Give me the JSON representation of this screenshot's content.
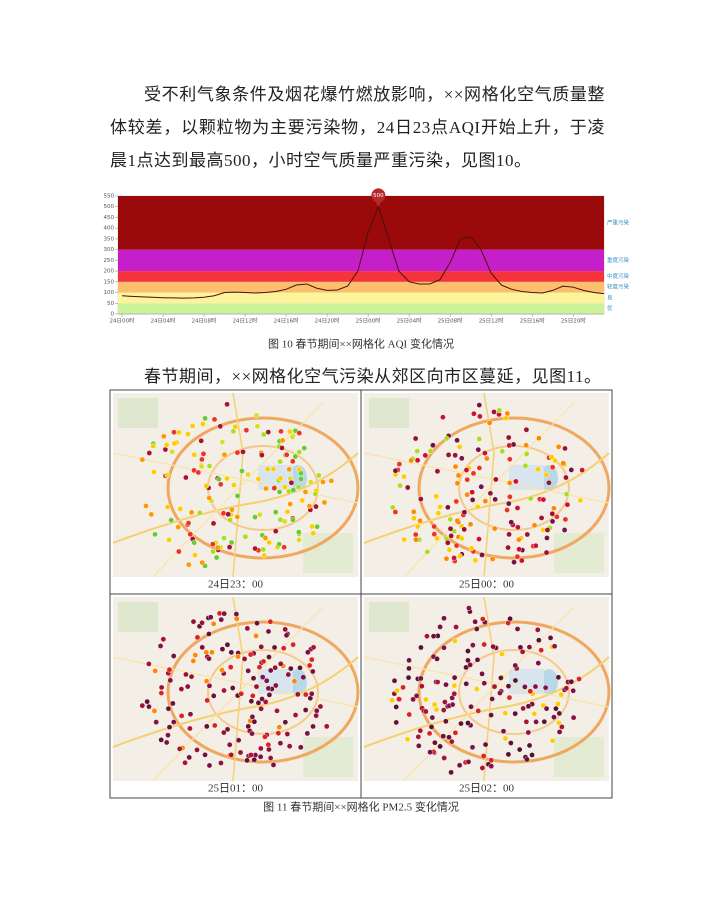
{
  "paragraphs": [
    "受不利气象条件及烟花爆竹燃放影响，××网格化空气质量整体较差，以颗粒物为主要污染物，24日23点AQI开始上升，于凌晨1点达到最高500，小时空气质量严重污染，见图10。",
    "春节期间，××网格化空气污染从郊区向市区蔓延，见图11。"
  ],
  "chart_data": {
    "type": "line",
    "caption": "图 10 春节期间××网格化 AQI 变化情况",
    "categories": [
      "24日00时",
      null,
      null,
      null,
      "24日04时",
      null,
      null,
      null,
      "24日08时",
      null,
      null,
      null,
      "24日12时",
      null,
      null,
      null,
      "24日16时",
      null,
      null,
      null,
      "24日20时",
      null,
      null,
      null,
      "25日00时",
      null,
      null,
      null,
      "25日04时",
      null,
      null,
      null,
      "25日08时",
      null,
      null,
      null,
      "25日12时",
      null,
      null,
      null,
      "25日16时",
      null,
      null,
      null,
      "25日20时",
      null,
      null,
      null
    ],
    "values": [
      85,
      82,
      80,
      78,
      76,
      75,
      74,
      75,
      78,
      85,
      100,
      102,
      100,
      98,
      100,
      105,
      115,
      135,
      140,
      120,
      110,
      112,
      130,
      200,
      380,
      500,
      350,
      200,
      150,
      140,
      140,
      160,
      240,
      350,
      360,
      300,
      190,
      135,
      115,
      105,
      100,
      98,
      110,
      130,
      125,
      110,
      100,
      95
    ],
    "color": "#4a1010",
    "ylim": [
      0,
      550
    ],
    "yticks": [
      0,
      50,
      100,
      150,
      200,
      250,
      300,
      350,
      400,
      450,
      500,
      550
    ],
    "bands": [
      {
        "name": "优",
        "from": 0,
        "to": 50,
        "color": "#ccf29a"
      },
      {
        "name": "良",
        "from": 50,
        "to": 100,
        "color": "#fbf49a"
      },
      {
        "name": "轻度污染",
        "from": 100,
        "to": 150,
        "color": "#fbbf6e"
      },
      {
        "name": "中度污染",
        "from": 150,
        "to": 200,
        "color": "#f4343a"
      },
      {
        "name": "重度污染",
        "from": 200,
        "to": 300,
        "color": "#c51fc9"
      },
      {
        "name": "严重污染",
        "from": 300,
        "to": 550,
        "color": "#9a0a0a"
      }
    ]
  },
  "figure11": {
    "caption": "图 11 春节期间××网格化 PM2.5 变化情况",
    "panels": [
      "24日23：00",
      "25日00：00",
      "25日01：00",
      "25日02：00"
    ]
  }
}
